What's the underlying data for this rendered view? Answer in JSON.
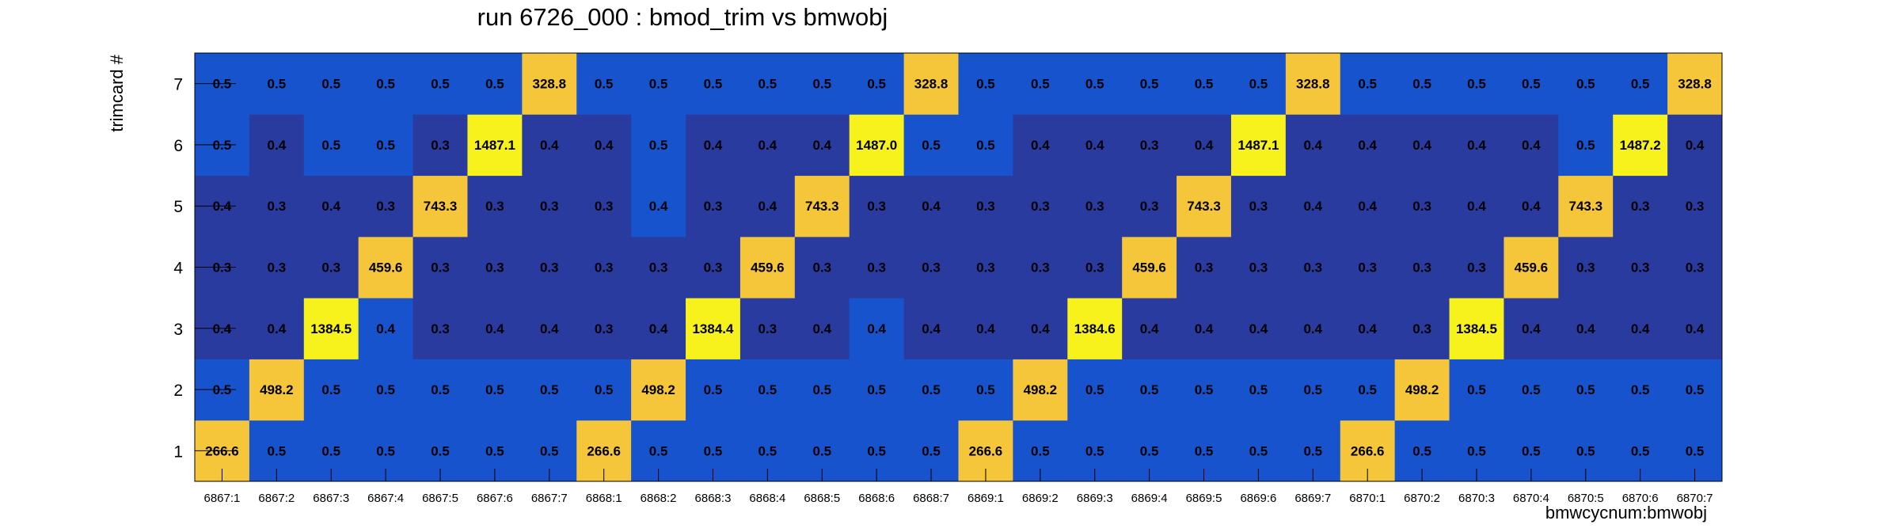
{
  "chart_data": {
    "type": "heatmap",
    "title": "run 6726_000 : bmod_trim vs bmwobj",
    "xlabel": "bmwcycnum:bmwobj",
    "ylabel": "trimcard #",
    "x_categories": [
      "6867:1",
      "6867:2",
      "6867:3",
      "6867:4",
      "6867:5",
      "6867:6",
      "6867:7",
      "6868:1",
      "6868:2",
      "6868:3",
      "6868:4",
      "6868:5",
      "6868:6",
      "6868:7",
      "6869:1",
      "6869:2",
      "6869:3",
      "6869:4",
      "6869:5",
      "6869:6",
      "6869:7",
      "6870:1",
      "6870:2",
      "6870:3",
      "6870:4",
      "6870:5",
      "6870:6",
      "6870:7"
    ],
    "y_categories": [
      "1",
      "2",
      "3",
      "4",
      "5",
      "6",
      "7"
    ],
    "values": [
      [
        "266.6",
        "0.5",
        "0.5",
        "0.5",
        "0.5",
        "0.5",
        "0.5",
        "266.6",
        "0.5",
        "0.5",
        "0.5",
        "0.5",
        "0.5",
        "0.5",
        "266.6",
        "0.5",
        "0.5",
        "0.5",
        "0.5",
        "0.5",
        "0.5",
        "266.6",
        "0.5",
        "0.5",
        "0.5",
        "0.5",
        "0.5",
        "0.5"
      ],
      [
        "0.5",
        "498.2",
        "0.5",
        "0.5",
        "0.5",
        "0.5",
        "0.5",
        "0.5",
        "498.2",
        "0.5",
        "0.5",
        "0.5",
        "0.5",
        "0.5",
        "0.5",
        "498.2",
        "0.5",
        "0.5",
        "0.5",
        "0.5",
        "0.5",
        "0.5",
        "498.2",
        "0.5",
        "0.5",
        "0.5",
        "0.5",
        "0.5"
      ],
      [
        "0.4",
        "0.4",
        "1384.5",
        "0.4",
        "0.3",
        "0.4",
        "0.4",
        "0.3",
        "0.4",
        "1384.4",
        "0.3",
        "0.4",
        "0.4",
        "0.4",
        "0.4",
        "0.4",
        "1384.6",
        "0.4",
        "0.4",
        "0.4",
        "0.4",
        "0.4",
        "0.3",
        "1384.5",
        "0.4",
        "0.4",
        "0.4",
        "0.4"
      ],
      [
        "0.3",
        "0.3",
        "0.3",
        "459.6",
        "0.3",
        "0.3",
        "0.3",
        "0.3",
        "0.3",
        "0.3",
        "459.6",
        "0.3",
        "0.3",
        "0.3",
        "0.3",
        "0.3",
        "0.3",
        "459.6",
        "0.3",
        "0.3",
        "0.3",
        "0.3",
        "0.3",
        "0.3",
        "459.6",
        "0.3",
        "0.3",
        "0.3"
      ],
      [
        "0.4",
        "0.3",
        "0.4",
        "0.3",
        "743.3",
        "0.3",
        "0.3",
        "0.3",
        "0.4",
        "0.3",
        "0.4",
        "743.3",
        "0.3",
        "0.4",
        "0.3",
        "0.3",
        "0.3",
        "0.3",
        "743.3",
        "0.3",
        "0.4",
        "0.4",
        "0.3",
        "0.4",
        "0.4",
        "743.3",
        "0.3",
        "0.3"
      ],
      [
        "0.5",
        "0.4",
        "0.5",
        "0.5",
        "0.3",
        "1487.1",
        "0.4",
        "0.4",
        "0.5",
        "0.4",
        "0.4",
        "0.4",
        "1487.0",
        "0.5",
        "0.5",
        "0.4",
        "0.4",
        "0.3",
        "0.4",
        "1487.1",
        "0.4",
        "0.4",
        "0.4",
        "0.4",
        "0.4",
        "0.5",
        "1487.2",
        "0.4"
      ],
      [
        "0.5",
        "0.5",
        "0.5",
        "0.5",
        "0.5",
        "0.5",
        "328.8",
        "0.5",
        "0.5",
        "0.5",
        "0.5",
        "0.5",
        "0.5",
        "328.8",
        "0.5",
        "0.5",
        "0.5",
        "0.5",
        "0.5",
        "0.5",
        "328.8",
        "0.5",
        "0.5",
        "0.5",
        "0.5",
        "0.5",
        "0.5",
        "328.8"
      ]
    ],
    "palette": {
      "val_0.3": "#2a3b9f",
      "val_0.4_light": "#1753cd",
      "val_0.4_dark": "#2a3b9f",
      "val_0.5": "#1753cd",
      "mid": "#f5c53a",
      "high": "#f7f21b"
    },
    "grid": false,
    "legend": "none"
  }
}
